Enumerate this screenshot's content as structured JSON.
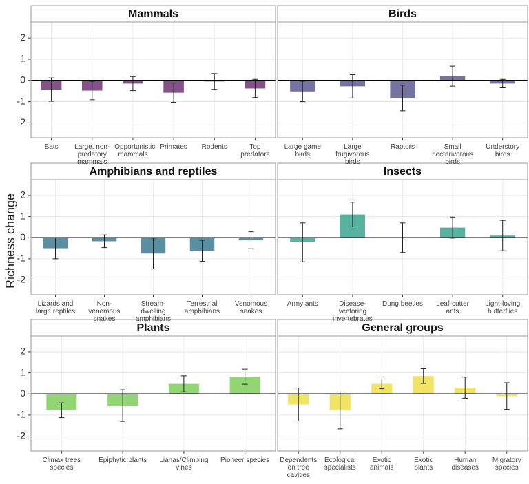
{
  "y_label": "Richness change",
  "chart_data": [
    {
      "type": "bar",
      "title": "Mammals",
      "color": "#6f3277",
      "ylim": [
        -2.7,
        2.75
      ],
      "yticks": [
        -2,
        -1,
        0,
        1,
        2
      ],
      "grid": true,
      "categories": [
        "Bats",
        "Large, non-predatory mammals",
        "Opportunistic mammals",
        "Primates",
        "Rodents",
        "Top predators"
      ],
      "values": [
        -0.43,
        -0.48,
        -0.15,
        -0.58,
        -0.05,
        -0.38
      ],
      "errors": [
        0.55,
        0.43,
        0.33,
        0.45,
        0.37,
        0.43
      ]
    },
    {
      "type": "bar",
      "title": "Birds",
      "color": "#5c5a91",
      "ylim": [
        -2.7,
        2.75
      ],
      "yticks": [
        -2,
        -1,
        0,
        1,
        2
      ],
      "grid": true,
      "categories": [
        "Large game birds",
        "Large frugivorous birds",
        "Raptors",
        "Small nectarivorous birds",
        "Understory birds"
      ],
      "values": [
        -0.52,
        -0.28,
        -0.83,
        0.2,
        -0.15
      ],
      "errors": [
        0.48,
        0.55,
        0.6,
        0.47,
        0.2
      ]
    },
    {
      "type": "bar",
      "title": "Amphibians and reptiles",
      "color": "#3d7b92",
      "ylim": [
        -2.7,
        2.75
      ],
      "yticks": [
        -2,
        -1,
        0,
        1,
        2
      ],
      "grid": true,
      "categories": [
        "Lizards and large reptiles",
        "Non-venomous snakes",
        "Stream-dwelling amphibians",
        "Terrestrial amphibians",
        "Venomous snakes"
      ],
      "values": [
        -0.5,
        -0.17,
        -0.75,
        -0.62,
        -0.12
      ],
      "errors": [
        0.5,
        0.3,
        0.73,
        0.5,
        0.4
      ]
    },
    {
      "type": "bar",
      "title": "Insects",
      "color": "#3aa68e",
      "ylim": [
        -2.7,
        2.75
      ],
      "yticks": [
        -2,
        -1,
        0,
        1,
        2
      ],
      "grid": true,
      "categories": [
        "Army ants",
        "Disease-vectoring invertebrates",
        "Dung beetles",
        "Leaf-cutter ants",
        "Light-loving butterflies"
      ],
      "values": [
        -0.22,
        1.1,
        0,
        0.48,
        0.1
      ],
      "errors": [
        0.92,
        0.58,
        0.7,
        0.5,
        0.72
      ]
    },
    {
      "type": "bar",
      "title": "Plants",
      "color": "#7ecf5a",
      "ylim": [
        -2.7,
        2.75
      ],
      "yticks": [
        -2,
        -1,
        0,
        1,
        2
      ],
      "grid": true,
      "categories": [
        "Climax trees species",
        "Epiphytic plants",
        "Lianas/Climbing vines",
        "Pioneer species"
      ],
      "values": [
        -0.77,
        -0.55,
        0.48,
        0.82
      ],
      "errors": [
        0.35,
        0.75,
        0.38,
        0.36
      ]
    },
    {
      "type": "bar",
      "title": "General groups",
      "color": "#f0e04a",
      "ylim": [
        -2.7,
        2.75
      ],
      "yticks": [
        -2,
        -1,
        0,
        1,
        2
      ],
      "grid": true,
      "categories": [
        "Dependents on tree cavities",
        "Ecological specialists",
        "Exotic animals",
        "Exotic plants",
        "Human diseases",
        "Migratory species"
      ],
      "values": [
        -0.5,
        -0.78,
        0.48,
        0.85,
        0.3,
        -0.1
      ],
      "errors": [
        0.78,
        0.87,
        0.23,
        0.35,
        0.5,
        0.63
      ]
    }
  ]
}
